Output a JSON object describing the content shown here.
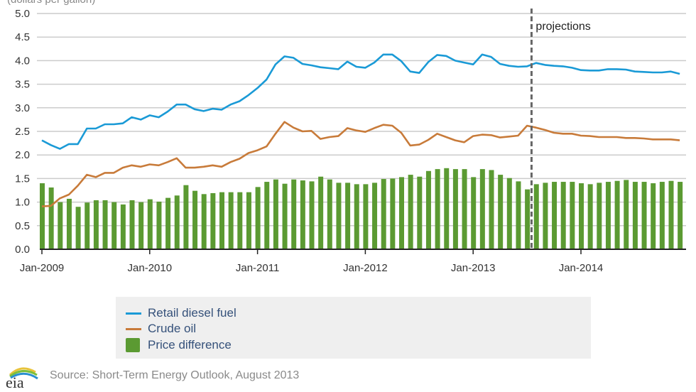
{
  "chart_data": {
    "type": "bar+line",
    "title": "",
    "ylabel": "(dollars per gallon)",
    "xlabel": "",
    "ylim": [
      0,
      5.0
    ],
    "yticks": [
      "0.0",
      "0.5",
      "1.0",
      "1.5",
      "2.0",
      "2.5",
      "3.0",
      "3.5",
      "4.0",
      "4.5",
      "5.0"
    ],
    "ytick_values": [
      0,
      0.5,
      1,
      1.5,
      2,
      2.5,
      3,
      3.5,
      4,
      4.5,
      5
    ],
    "xtick_labels": [
      "Jan-2009",
      "Jan-2010",
      "Jan-2011",
      "Jan-2012",
      "Jan-2013",
      "Jan-2014"
    ],
    "xtick_month_index": [
      0,
      12,
      24,
      36,
      48,
      60
    ],
    "x_start": "Jan-2009",
    "x_end": "Dec-2014",
    "grid": true,
    "projection_start_month_index": 55,
    "annotation": "projections",
    "series": [
      {
        "name": "Retail diesel fuel",
        "type": "line",
        "color": "#1a9ad6",
        "values": [
          2.31,
          2.21,
          2.13,
          2.23,
          2.23,
          2.56,
          2.56,
          2.65,
          2.65,
          2.67,
          2.8,
          2.75,
          2.84,
          2.8,
          2.92,
          3.07,
          3.07,
          2.97,
          2.93,
          2.98,
          2.96,
          3.07,
          3.14,
          3.27,
          3.42,
          3.6,
          3.92,
          4.09,
          4.06,
          3.93,
          3.9,
          3.86,
          3.84,
          3.82,
          3.98,
          3.87,
          3.85,
          3.96,
          4.13,
          4.13,
          3.99,
          3.77,
          3.74,
          3.97,
          4.12,
          4.1,
          4.0,
          3.96,
          3.92,
          4.13,
          4.08,
          3.93,
          3.89,
          3.87,
          3.88,
          3.95,
          3.91,
          3.89,
          3.88,
          3.85,
          3.8,
          3.79,
          3.79,
          3.82,
          3.82,
          3.81,
          3.77,
          3.76,
          3.75,
          3.75,
          3.77,
          3.72
        ]
      },
      {
        "name": "Crude oil",
        "type": "line",
        "color": "#c87b3a",
        "values": [
          0.91,
          0.92,
          1.08,
          1.16,
          1.35,
          1.58,
          1.53,
          1.62,
          1.62,
          1.73,
          1.78,
          1.75,
          1.8,
          1.78,
          1.85,
          1.93,
          1.73,
          1.73,
          1.75,
          1.78,
          1.75,
          1.85,
          1.92,
          2.04,
          2.1,
          2.18,
          2.45,
          2.7,
          2.58,
          2.5,
          2.51,
          2.34,
          2.38,
          2.4,
          2.57,
          2.52,
          2.49,
          2.57,
          2.64,
          2.62,
          2.47,
          2.2,
          2.22,
          2.32,
          2.45,
          2.38,
          2.31,
          2.27,
          2.4,
          2.43,
          2.42,
          2.37,
          2.39,
          2.41,
          2.62,
          2.58,
          2.53,
          2.47,
          2.45,
          2.45,
          2.41,
          2.4,
          2.38,
          2.38,
          2.38,
          2.36,
          2.36,
          2.35,
          2.33,
          2.33,
          2.33,
          2.31
        ]
      },
      {
        "name": "Price difference",
        "type": "bar",
        "color": "#5b9a32",
        "values": [
          1.4,
          1.31,
          1.0,
          1.07,
          0.9,
          0.99,
          1.04,
          1.04,
          1.0,
          0.95,
          1.04,
          1.0,
          1.06,
          1.01,
          1.09,
          1.14,
          1.36,
          1.24,
          1.17,
          1.19,
          1.21,
          1.21,
          1.21,
          1.21,
          1.32,
          1.43,
          1.48,
          1.39,
          1.48,
          1.46,
          1.44,
          1.54,
          1.48,
          1.41,
          1.41,
          1.38,
          1.38,
          1.41,
          1.49,
          1.5,
          1.53,
          1.58,
          1.54,
          1.66,
          1.7,
          1.72,
          1.7,
          1.7,
          1.53,
          1.7,
          1.68,
          1.58,
          1.51,
          1.44,
          1.27,
          1.38,
          1.41,
          1.43,
          1.43,
          1.43,
          1.4,
          1.38,
          1.41,
          1.43,
          1.45,
          1.47,
          1.43,
          1.43,
          1.4,
          1.43,
          1.45,
          1.43
        ]
      }
    ],
    "legend_placement": "bottom"
  },
  "legend": {
    "items": [
      "Retail diesel fuel",
      "Crude oil",
      "Price difference"
    ]
  },
  "footer": {
    "logo_text": "eia",
    "source": "Source: Short-Term Energy Outlook, August 2013"
  }
}
